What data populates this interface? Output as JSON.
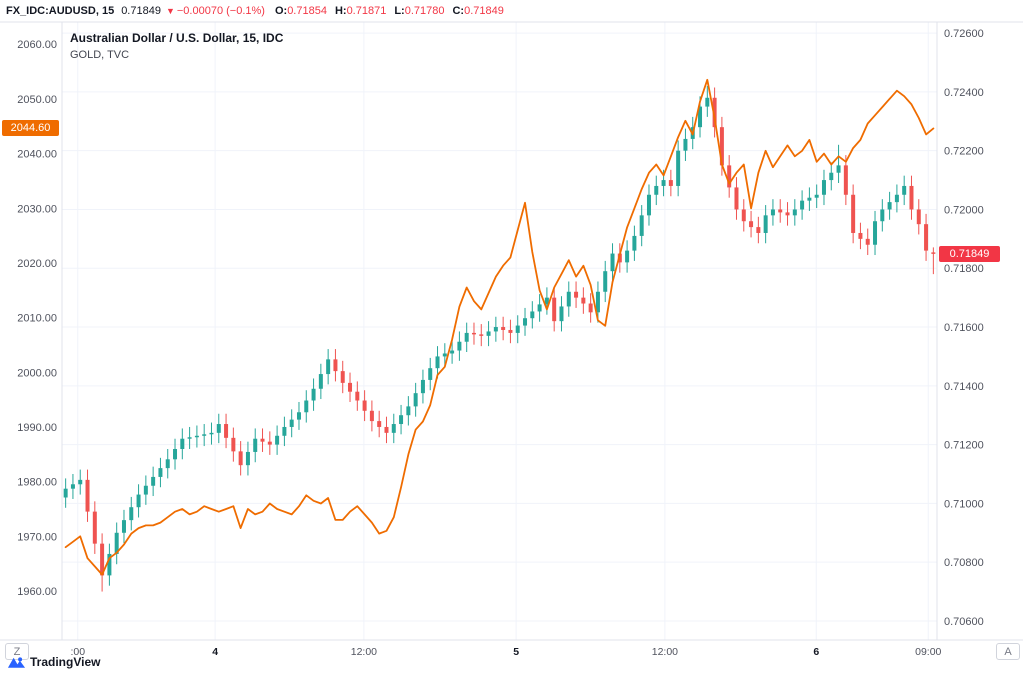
{
  "header": {
    "symbol": "FX_IDC:AUDUSD, 15",
    "price": "0.71849",
    "arrow": "▼",
    "change": "−0.00070 (−0.1%)",
    "ohlc": {
      "o": {
        "label": "O:",
        "value": "0.71854"
      },
      "h": {
        "label": "H:",
        "value": "0.71871"
      },
      "l": {
        "label": "L:",
        "value": "0.71780"
      },
      "c": {
        "label": "C:",
        "value": "0.71849"
      }
    }
  },
  "legend": {
    "main": "Australian Dollar / U.S. Dollar, 15, IDC",
    "overlay": "GOLD, TVC"
  },
  "buttons": {
    "timezone": "Z",
    "auto": "A"
  },
  "footer": {
    "logo_text": "TradingView"
  },
  "colors": {
    "up": "#26a69a",
    "down": "#ef5350",
    "overlay_line": "#ef6c00",
    "current_red": "#f23645",
    "grid": "#f0f3fa",
    "border": "#e0e3eb",
    "axis_text": "#50535e",
    "major_text": "#131722",
    "logo_blue": "#2962ff"
  },
  "chart_data": {
    "type": "candlestick",
    "title": "Australian Dollar / U.S. Dollar, 15, IDC",
    "timeframe": "15",
    "grid": true,
    "right_axis": {
      "name": "AUDUSD",
      "range": [
        0.70542,
        0.72631
      ],
      "ticks": [
        0.726,
        0.724,
        0.722,
        0.72,
        0.718,
        0.716,
        0.714,
        0.712,
        0.71,
        0.708,
        0.706
      ],
      "badge": 0.71849,
      "badge_label": "0.71849"
    },
    "left_axis": {
      "name": "GOLD",
      "range": [
        1951.4,
        2063.7
      ],
      "ticks": [
        2060,
        2050,
        2040,
        2030,
        2020,
        2010,
        2000,
        1990,
        1980,
        1970,
        1960
      ],
      "badge": 2044.6,
      "badge_label": "2044.60"
    },
    "time_axis": {
      "labels": [
        {
          "label": ":00",
          "pos": 0.018,
          "major": false
        },
        {
          "label": "4",
          "pos": 0.175,
          "major": true
        },
        {
          "label": "12:00",
          "pos": 0.345,
          "major": false
        },
        {
          "label": "5",
          "pos": 0.519,
          "major": true
        },
        {
          "label": "12:00",
          "pos": 0.689,
          "major": false
        },
        {
          "label": "6",
          "pos": 0.862,
          "major": true
        },
        {
          "label": "09:00",
          "pos": 0.99,
          "major": false
        }
      ]
    },
    "ohlc": [
      [
        0.7102,
        0.71085,
        0.70985,
        0.7105
      ],
      [
        0.7105,
        0.711,
        0.71015,
        0.71065
      ],
      [
        0.71065,
        0.71115,
        0.7103,
        0.7108
      ],
      [
        0.7108,
        0.71115,
        0.70937,
        0.70972
      ],
      [
        0.70972,
        0.71007,
        0.70828,
        0.70863
      ],
      [
        0.70863,
        0.70898,
        0.707,
        0.70755
      ],
      [
        0.70755,
        0.70863,
        0.7072,
        0.70828
      ],
      [
        0.70828,
        0.70935,
        0.70793,
        0.709
      ],
      [
        0.709,
        0.70978,
        0.70865,
        0.70943
      ],
      [
        0.70943,
        0.71022,
        0.70908,
        0.70987
      ],
      [
        0.70987,
        0.71065,
        0.70952,
        0.7103
      ],
      [
        0.7103,
        0.71095,
        0.70995,
        0.7106
      ],
      [
        0.7106,
        0.71125,
        0.71025,
        0.7109
      ],
      [
        0.7109,
        0.71155,
        0.71055,
        0.7112
      ],
      [
        0.7112,
        0.71185,
        0.71085,
        0.7115
      ],
      [
        0.7115,
        0.7122,
        0.71115,
        0.71185
      ],
      [
        0.71185,
        0.71255,
        0.7115,
        0.7122
      ],
      [
        0.7122,
        0.7126,
        0.71185,
        0.71225
      ],
      [
        0.71225,
        0.71265,
        0.7119,
        0.7123
      ],
      [
        0.7123,
        0.7127,
        0.71195,
        0.71235
      ],
      [
        0.71235,
        0.71275,
        0.712,
        0.7124
      ],
      [
        0.7124,
        0.71305,
        0.71205,
        0.7127
      ],
      [
        0.7127,
        0.71305,
        0.71188,
        0.71223
      ],
      [
        0.71223,
        0.71258,
        0.71142,
        0.71177
      ],
      [
        0.71177,
        0.71212,
        0.71095,
        0.7113
      ],
      [
        0.7113,
        0.7121,
        0.71095,
        0.71175
      ],
      [
        0.71175,
        0.71255,
        0.7114,
        0.7122
      ],
      [
        0.7122,
        0.71255,
        0.71175,
        0.7121
      ],
      [
        0.7121,
        0.71245,
        0.71165,
        0.712
      ],
      [
        0.712,
        0.71265,
        0.71165,
        0.7123
      ],
      [
        0.7123,
        0.71295,
        0.71195,
        0.7126
      ],
      [
        0.7126,
        0.7132,
        0.71225,
        0.71285
      ],
      [
        0.71285,
        0.71345,
        0.7125,
        0.7131
      ],
      [
        0.7131,
        0.71385,
        0.71275,
        0.7135
      ],
      [
        0.7135,
        0.71425,
        0.71315,
        0.7139
      ],
      [
        0.7139,
        0.71475,
        0.71355,
        0.7144
      ],
      [
        0.7144,
        0.71525,
        0.71405,
        0.7149
      ],
      [
        0.7149,
        0.71525,
        0.71415,
        0.7145
      ],
      [
        0.7145,
        0.71485,
        0.71375,
        0.7141
      ],
      [
        0.7141,
        0.71445,
        0.71345,
        0.7138
      ],
      [
        0.7138,
        0.71415,
        0.71315,
        0.7135
      ],
      [
        0.7135,
        0.71385,
        0.7128,
        0.71315
      ],
      [
        0.71315,
        0.7135,
        0.71245,
        0.7128
      ],
      [
        0.7128,
        0.71315,
        0.71225,
        0.7126
      ],
      [
        0.7126,
        0.71295,
        0.71205,
        0.7124
      ],
      [
        0.7124,
        0.71305,
        0.71205,
        0.7127
      ],
      [
        0.7127,
        0.71335,
        0.71235,
        0.713
      ],
      [
        0.713,
        0.71365,
        0.71265,
        0.7133
      ],
      [
        0.7133,
        0.7141,
        0.71295,
        0.71375
      ],
      [
        0.71375,
        0.71455,
        0.7134,
        0.7142
      ],
      [
        0.7142,
        0.71495,
        0.71385,
        0.7146
      ],
      [
        0.7146,
        0.71535,
        0.71425,
        0.715
      ],
      [
        0.715,
        0.71545,
        0.71465,
        0.7151
      ],
      [
        0.7151,
        0.71555,
        0.71475,
        0.7152
      ],
      [
        0.7152,
        0.71585,
        0.71485,
        0.7155
      ],
      [
        0.7155,
        0.71615,
        0.71515,
        0.7158
      ],
      [
        0.7158,
        0.71615,
        0.7154,
        0.71575
      ],
      [
        0.71575,
        0.7161,
        0.71535,
        0.7157
      ],
      [
        0.7157,
        0.7162,
        0.71535,
        0.71585
      ],
      [
        0.71585,
        0.71635,
        0.7155,
        0.716
      ],
      [
        0.716,
        0.71635,
        0.71555,
        0.7159
      ],
      [
        0.7159,
        0.71625,
        0.71545,
        0.7158
      ],
      [
        0.7158,
        0.7164,
        0.71545,
        0.71605
      ],
      [
        0.71605,
        0.71665,
        0.7157,
        0.7163
      ],
      [
        0.7163,
        0.71688,
        0.71595,
        0.71653
      ],
      [
        0.71653,
        0.71712,
        0.71618,
        0.71677
      ],
      [
        0.71677,
        0.71735,
        0.71642,
        0.717
      ],
      [
        0.717,
        0.71735,
        0.71585,
        0.7162
      ],
      [
        0.7162,
        0.71705,
        0.71585,
        0.7167
      ],
      [
        0.7167,
        0.71755,
        0.71635,
        0.7172
      ],
      [
        0.7172,
        0.71755,
        0.71665,
        0.717
      ],
      [
        0.717,
        0.71735,
        0.71645,
        0.7168
      ],
      [
        0.7168,
        0.71715,
        0.71615,
        0.7165
      ],
      [
        0.7165,
        0.71755,
        0.71615,
        0.7172
      ],
      [
        0.7172,
        0.71825,
        0.71685,
        0.7179
      ],
      [
        0.7179,
        0.71885,
        0.71755,
        0.7185
      ],
      [
        0.7185,
        0.71885,
        0.71785,
        0.7182
      ],
      [
        0.7182,
        0.71895,
        0.71785,
        0.7186
      ],
      [
        0.7186,
        0.71945,
        0.71825,
        0.7191
      ],
      [
        0.7191,
        0.72015,
        0.71875,
        0.7198
      ],
      [
        0.7198,
        0.72085,
        0.71945,
        0.7205
      ],
      [
        0.7205,
        0.72115,
        0.72015,
        0.7208
      ],
      [
        0.7208,
        0.72135,
        0.72045,
        0.721
      ],
      [
        0.721,
        0.72135,
        0.72045,
        0.7208
      ],
      [
        0.7208,
        0.72235,
        0.72045,
        0.722
      ],
      [
        0.722,
        0.72275,
        0.72165,
        0.7224
      ],
      [
        0.7224,
        0.72315,
        0.72205,
        0.7228
      ],
      [
        0.7228,
        0.72385,
        0.72245,
        0.7235
      ],
      [
        0.7235,
        0.7242,
        0.72315,
        0.7238
      ],
      [
        0.7238,
        0.72415,
        0.72245,
        0.7228
      ],
      [
        0.7228,
        0.72315,
        0.72115,
        0.7215
      ],
      [
        0.7215,
        0.72185,
        0.7204,
        0.72075
      ],
      [
        0.72075,
        0.7211,
        0.71965,
        0.72
      ],
      [
        0.72,
        0.72035,
        0.71925,
        0.7196
      ],
      [
        0.7196,
        0.71995,
        0.71905,
        0.7194
      ],
      [
        0.7194,
        0.71975,
        0.71885,
        0.7192
      ],
      [
        0.7192,
        0.72015,
        0.71885,
        0.7198
      ],
      [
        0.7198,
        0.72035,
        0.71945,
        0.72
      ],
      [
        0.72,
        0.72035,
        0.71955,
        0.7199
      ],
      [
        0.7199,
        0.72025,
        0.71945,
        0.7198
      ],
      [
        0.7198,
        0.72035,
        0.71945,
        0.72
      ],
      [
        0.72,
        0.72065,
        0.71965,
        0.7203
      ],
      [
        0.7203,
        0.72075,
        0.71995,
        0.7204
      ],
      [
        0.7204,
        0.72085,
        0.72005,
        0.7205
      ],
      [
        0.7205,
        0.72135,
        0.72015,
        0.721
      ],
      [
        0.721,
        0.7216,
        0.72065,
        0.72125
      ],
      [
        0.72125,
        0.7222,
        0.7209,
        0.7215
      ],
      [
        0.7215,
        0.72185,
        0.72015,
        0.7205
      ],
      [
        0.7205,
        0.72085,
        0.71885,
        0.7192
      ],
      [
        0.7192,
        0.71955,
        0.71865,
        0.719
      ],
      [
        0.719,
        0.71935,
        0.71845,
        0.7188
      ],
      [
        0.7188,
        0.71995,
        0.71845,
        0.7196
      ],
      [
        0.7196,
        0.72035,
        0.71925,
        0.72
      ],
      [
        0.72,
        0.7206,
        0.71965,
        0.72025
      ],
      [
        0.72025,
        0.72085,
        0.7199,
        0.7205
      ],
      [
        0.7205,
        0.72115,
        0.72015,
        0.7208
      ],
      [
        0.7208,
        0.72115,
        0.71965,
        0.72
      ],
      [
        0.72,
        0.72035,
        0.71915,
        0.7195
      ],
      [
        0.7195,
        0.71985,
        0.71825,
        0.7186
      ],
      [
        0.71854,
        0.71871,
        0.7178,
        0.71849
      ]
    ],
    "overlay_series": {
      "name": "GOLD, TVC",
      "values": [
        1968,
        1969,
        1970,
        1966,
        1964.5,
        1963,
        1966,
        1967,
        1968.5,
        1970.5,
        1971.5,
        1972,
        1972,
        1972.5,
        1973.5,
        1974.5,
        1975,
        1974,
        1974.5,
        1975.5,
        1975,
        1974.5,
        1975,
        1975.5,
        1971.5,
        1975,
        1974,
        1974.5,
        1976,
        1975,
        1974.5,
        1974,
        1975.5,
        1977.5,
        1976.5,
        1976,
        1977,
        1973,
        1973,
        1974.5,
        1975.5,
        1974,
        1972.5,
        1970.5,
        1971,
        1973.5,
        1979,
        1985,
        1989.5,
        1991,
        1994,
        1999.5,
        2001,
        2006,
        2012,
        2015.5,
        2013,
        2011.5,
        2014.5,
        2017.5,
        2019.5,
        2021,
        2026,
        2031,
        2022,
        2015,
        2011.5,
        2015.5,
        2018,
        2020.5,
        2017.5,
        2019.5,
        2016,
        2009.5,
        2008.5,
        2016.5,
        2021.5,
        2026.5,
        2030,
        2033.5,
        2036.5,
        2038,
        2036,
        2039.5,
        2043,
        2046,
        2043.5,
        2049.5,
        2053.5,
        2046.5,
        2038,
        2034.5,
        2036.5,
        2038,
        2030,
        2036.5,
        2040.5,
        2037.5,
        2039.5,
        2041.5,
        2039.5,
        2040.5,
        2042.5,
        2038.5,
        2040,
        2038,
        2039.5,
        2038.5,
        2041,
        2042.5,
        2045.5,
        2047,
        2048.5,
        2050,
        2051.5,
        2050.5,
        2049,
        2046.5,
        2043.5,
        2044.6
      ]
    }
  }
}
